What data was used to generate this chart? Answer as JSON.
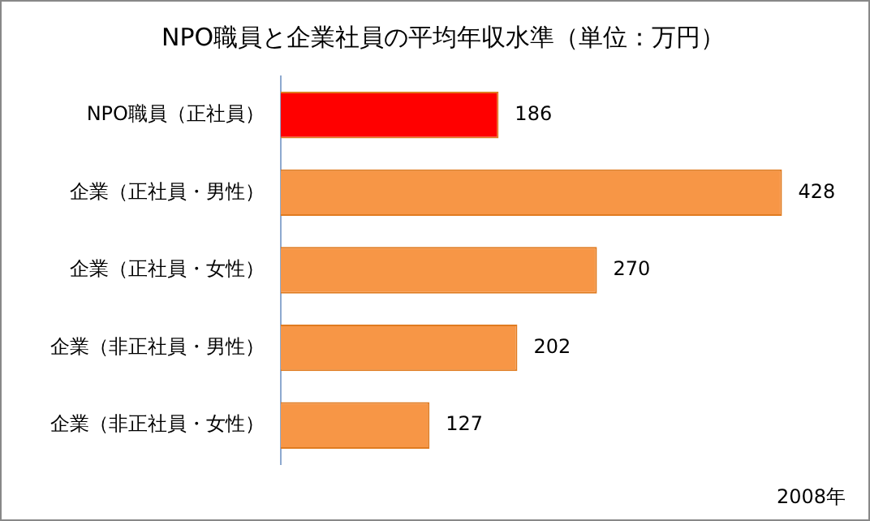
{
  "chart_data": {
    "type": "bar",
    "orientation": "horizontal",
    "title": "NPO職員と企業社員の平均年収水準（単位：万円）",
    "categories": [
      "NPO職員（正社員）",
      "企業（正社員・男性）",
      "企業（正社員・女性）",
      "企業（非正社員・男性）",
      "企業（非正社員・女性）"
    ],
    "values": [
      186,
      428,
      270,
      202,
      127
    ],
    "colors": [
      "#ff0000",
      "#f79646",
      "#f79646",
      "#f79646",
      "#f79646"
    ],
    "data_labels": true,
    "legend": false,
    "annotations": [
      "2008年"
    ]
  }
}
